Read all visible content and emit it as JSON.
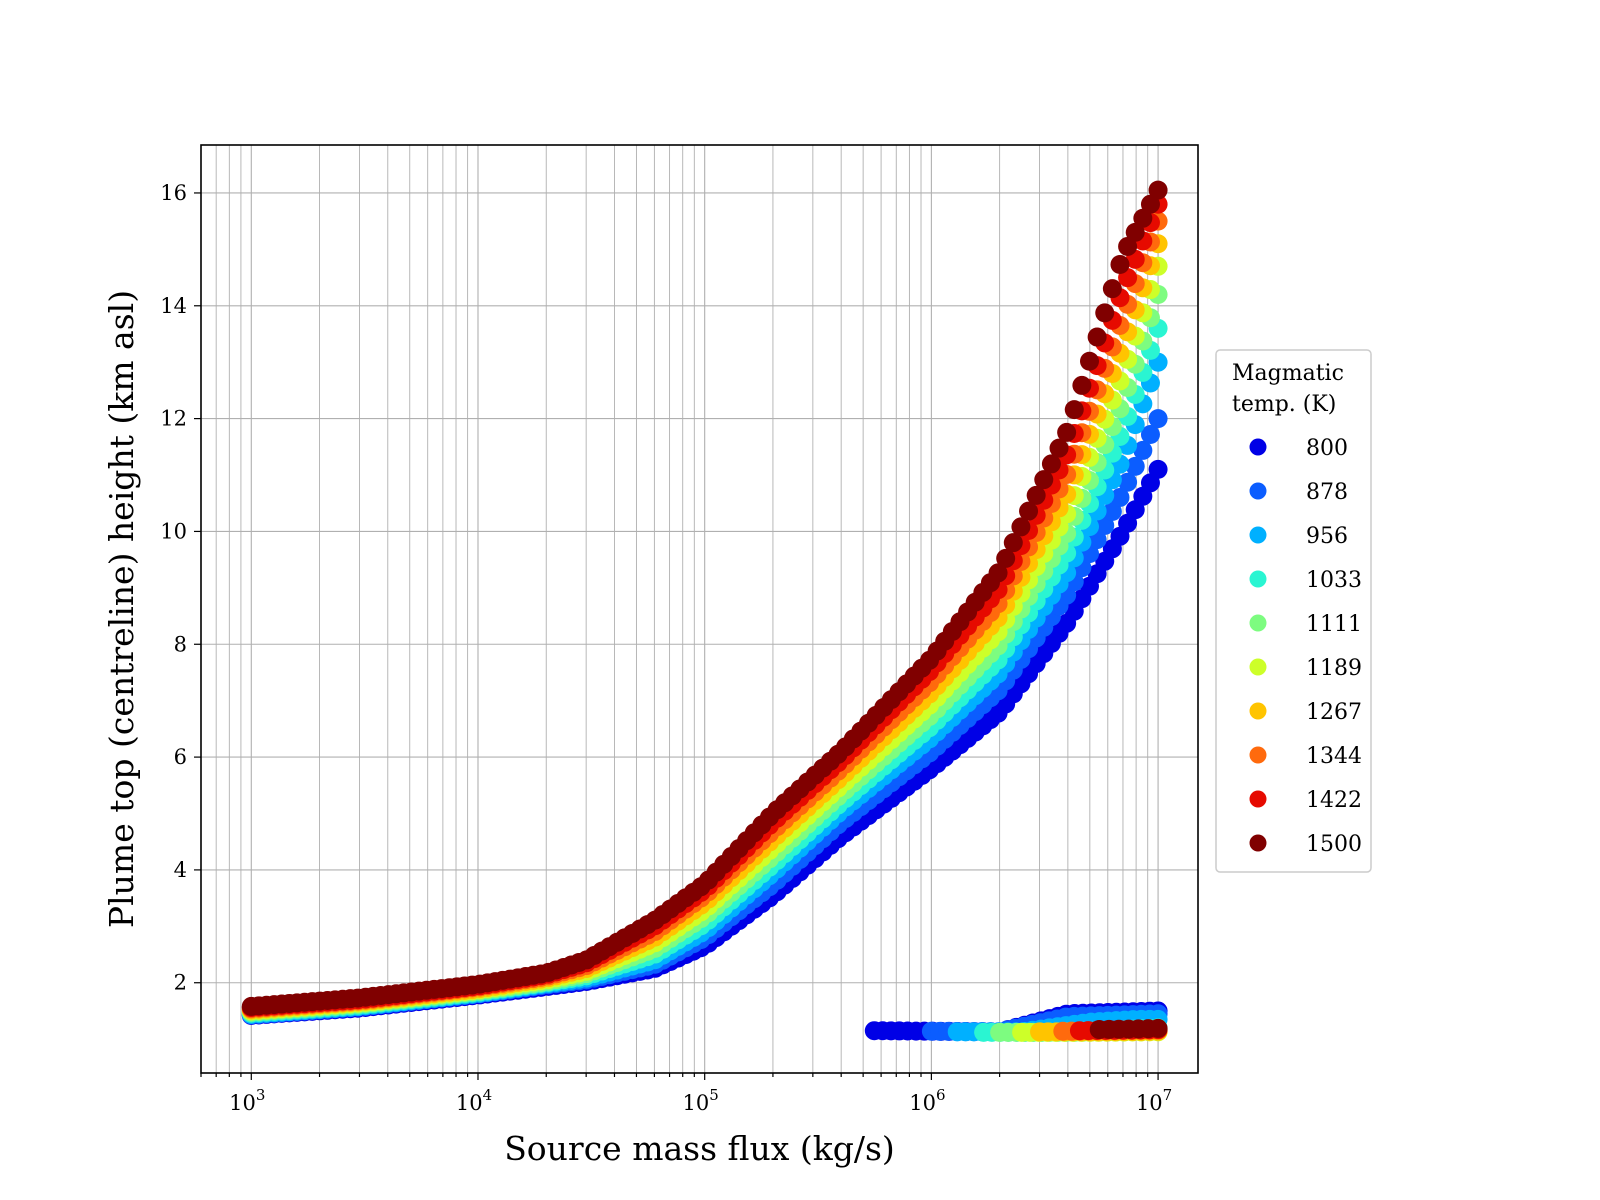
{
  "chart_data": {
    "type": "scatter",
    "title": "",
    "xlabel": "Source mass flux (kg/s)",
    "ylabel": "Plume top (centreline) height (km asl)",
    "xscale": "log",
    "xlim": [
      600,
      15000000
    ],
    "ylim": [
      0.4,
      16.85
    ],
    "grid": true,
    "x_ticks": [
      {
        "value": 1000,
        "base": "10",
        "exp": "3"
      },
      {
        "value": 10000,
        "base": "10",
        "exp": "4"
      },
      {
        "value": 100000,
        "base": "10",
        "exp": "5"
      },
      {
        "value": 1000000,
        "base": "10",
        "exp": "6"
      },
      {
        "value": 10000000,
        "base": "10",
        "exp": "7"
      }
    ],
    "y_ticks": [
      2,
      4,
      6,
      8,
      10,
      12,
      14,
      16
    ],
    "legend": {
      "title_lines": [
        "Magmatic",
        "temp. (K)"
      ],
      "position": "outside-right"
    },
    "x_samples": [
      1000,
      3000,
      10000,
      20000,
      30000,
      60000,
      100000,
      200000,
      400000,
      1000000,
      2000000,
      4000000,
      7000000,
      10000000
    ],
    "series": [
      {
        "name": "800",
        "color": "#0000e6",
        "y": [
          1.42,
          1.55,
          1.78,
          1.93,
          2.02,
          2.25,
          2.65,
          3.55,
          4.6,
          5.8,
          6.8,
          8.4,
          10.0,
          11.1
        ],
        "low_branch": {
          "x": [
            560000,
            1000000,
            2000000,
            4000000,
            7000000,
            10000000
          ],
          "y": [
            1.15,
            1.14,
            1.13,
            1.45,
            1.48,
            1.5
          ]
        }
      },
      {
        "name": "878",
        "color": "#0b5dff",
        "y": [
          1.43,
          1.57,
          1.8,
          1.96,
          2.05,
          2.32,
          2.8,
          3.75,
          4.85,
          6.1,
          7.2,
          8.9,
          10.7,
          12.0
        ],
        "low_branch": {
          "x": [
            1000000,
            2000000,
            4000000,
            7000000,
            10000000
          ],
          "y": [
            1.14,
            1.13,
            1.4,
            1.43,
            1.45
          ]
        }
      },
      {
        "name": "956",
        "color": "#00b0ff",
        "y": [
          1.44,
          1.58,
          1.81,
          1.98,
          2.08,
          2.4,
          2.92,
          3.95,
          5.05,
          6.35,
          7.5,
          9.3,
          11.3,
          13.0
        ],
        "low_branch": {
          "x": [
            1300000,
            2500000,
            5000000,
            8000000,
            10000000
          ],
          "y": [
            1.13,
            1.13,
            1.3,
            1.35,
            1.35
          ]
        }
      },
      {
        "name": "1033",
        "color": "#2af5d2",
        "y": [
          1.46,
          1.6,
          1.83,
          2.0,
          2.12,
          2.5,
          3.05,
          4.1,
          5.2,
          6.55,
          7.75,
          9.65,
          11.8,
          13.6
        ],
        "low_branch": {
          "x": [
            1700000,
            3000000,
            6000000,
            10000000
          ],
          "y": [
            1.12,
            1.12,
            1.15,
            1.2
          ]
        }
      },
      {
        "name": "1111",
        "color": "#7dfc80",
        "y": [
          1.48,
          1.62,
          1.85,
          2.02,
          2.16,
          2.6,
          3.18,
          4.25,
          5.35,
          6.75,
          8.0,
          10.0,
          12.3,
          14.2
        ],
        "low_branch": {
          "x": [
            2000000,
            4000000,
            7000000,
            10000000
          ],
          "y": [
            1.12,
            1.12,
            1.13,
            1.15
          ]
        }
      },
      {
        "name": "1189",
        "color": "#cdff29",
        "y": [
          1.5,
          1.64,
          1.87,
          2.05,
          2.2,
          2.7,
          3.3,
          4.4,
          5.5,
          6.95,
          8.25,
          10.35,
          12.8,
          14.7
        ],
        "low_branch": {
          "x": [
            2500000,
            5000000,
            10000000
          ],
          "y": [
            1.12,
            1.12,
            1.13
          ]
        }
      },
      {
        "name": "1267",
        "color": "#ffc400",
        "y": [
          1.52,
          1.66,
          1.89,
          2.08,
          2.25,
          2.8,
          3.42,
          4.55,
          5.65,
          7.15,
          8.5,
          10.7,
          13.3,
          15.1
        ],
        "low_branch": {
          "x": [
            3000000,
            6000000,
            10000000
          ],
          "y": [
            1.13,
            1.13,
            1.14
          ]
        }
      },
      {
        "name": "1344",
        "color": "#ff6a0d",
        "y": [
          1.54,
          1.68,
          1.92,
          2.11,
          2.3,
          2.9,
          3.55,
          4.7,
          5.8,
          7.35,
          8.75,
          11.05,
          13.8,
          15.5
        ],
        "low_branch": {
          "x": [
            3800000,
            6500000,
            10000000
          ],
          "y": [
            1.14,
            1.15,
            1.16
          ]
        }
      },
      {
        "name": "1422",
        "color": "#e60a00",
        "y": [
          1.56,
          1.7,
          1.94,
          2.14,
          2.35,
          3.0,
          3.65,
          4.85,
          5.95,
          7.55,
          9.0,
          11.4,
          14.3,
          15.8
        ],
        "low_branch": {
          "x": [
            4500000,
            7000000,
            10000000
          ],
          "y": [
            1.15,
            1.16,
            1.17
          ]
        }
      },
      {
        "name": "1500",
        "color": "#800000",
        "y": [
          1.58,
          1.73,
          1.97,
          2.17,
          2.4,
          3.1,
          3.75,
          5.0,
          6.1,
          7.75,
          9.3,
          11.8,
          14.9,
          16.05
        ],
        "low_branch": {
          "x": [
            5500000,
            8000000,
            10000000
          ],
          "y": [
            1.17,
            1.18,
            1.19
          ]
        }
      }
    ]
  }
}
